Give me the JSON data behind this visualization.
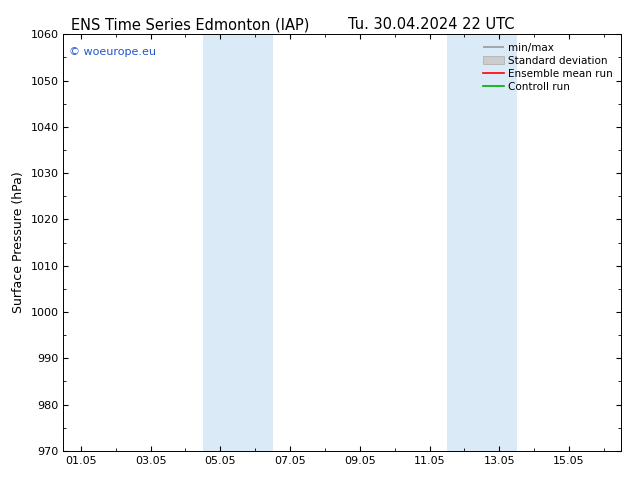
{
  "title_left": "ENS Time Series Edmonton (IAP)",
  "title_right": "Tu. 30.04.2024 22 UTC",
  "ylabel": "Surface Pressure (hPa)",
  "ylim": [
    970,
    1060
  ],
  "yticks": [
    970,
    980,
    990,
    1000,
    1010,
    1020,
    1030,
    1040,
    1050,
    1060
  ],
  "xlim": [
    -0.5,
    15.5
  ],
  "xtick_labels": [
    "01.05",
    "03.05",
    "05.05",
    "07.05",
    "09.05",
    "11.05",
    "13.05",
    "15.05"
  ],
  "xtick_positions": [
    0,
    2,
    4,
    6,
    8,
    10,
    12,
    14
  ],
  "shaded_bands": [
    {
      "x_start": 3.5,
      "x_end": 5.5
    },
    {
      "x_start": 10.5,
      "x_end": 12.5
    }
  ],
  "shade_color": "#daeaf7",
  "background_color": "#ffffff",
  "watermark_text": "© woeurope.eu",
  "watermark_color": "#2255cc",
  "legend_items": [
    {
      "label": "min/max",
      "color": "#999999",
      "lw": 1.2
    },
    {
      "label": "Standard deviation",
      "color": "#cccccc",
      "lw": 6
    },
    {
      "label": "Ensemble mean run",
      "color": "#ff0000",
      "lw": 1.2
    },
    {
      "label": "Controll run",
      "color": "#00aa00",
      "lw": 1.2
    }
  ],
  "title_fontsize": 10.5,
  "ylabel_fontsize": 9,
  "tick_fontsize": 8,
  "legend_fontsize": 7.5
}
